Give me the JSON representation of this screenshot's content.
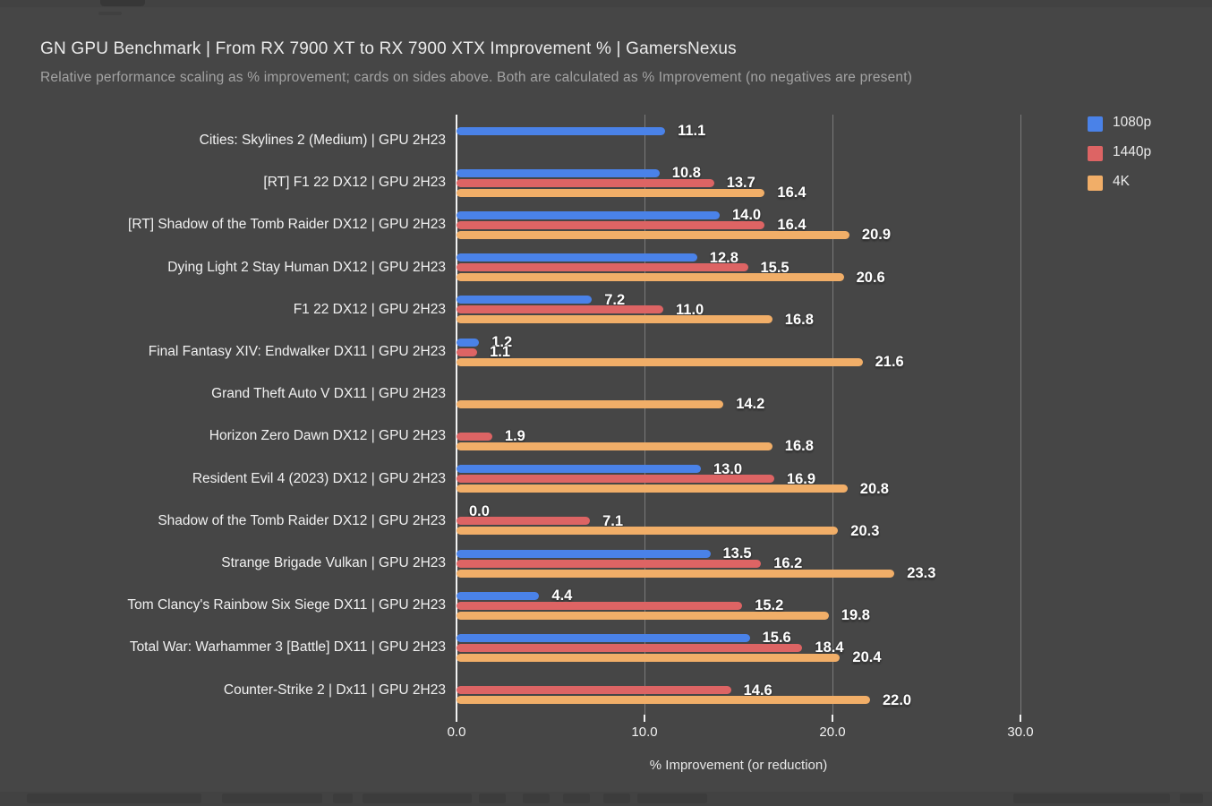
{
  "header": {
    "title": "GN GPU Benchmark | From RX 7900 XT to RX 7900 XTX Improvement % | GamersNexus",
    "subtitle": "Relative performance scaling as % improvement; cards on sides above. Both are calculated as % Improvement (no negatives are present)"
  },
  "colors": {
    "background": "#464646",
    "series_1080p": "#4a82e8",
    "series_1440p": "#dd6464",
    "series_4k": "#f1ae68",
    "gridline": "#7a7a7a",
    "axis": "#f2f2f2"
  },
  "chart_data": {
    "type": "bar",
    "orientation": "horizontal",
    "title": "GN GPU Benchmark | From RX 7900 XT to RX 7900 XTX Improvement % | GamersNexus",
    "subtitle": "Relative performance scaling as % improvement; cards on sides above. Both are calculated as % Improvement (no negatives are present)",
    "xlabel": "% Improvement (or reduction)",
    "xlim": [
      0,
      32
    ],
    "xticks": [
      0.0,
      10.0,
      20.0,
      30.0
    ],
    "grid": "vertical",
    "legend_position": "top-right",
    "value_label_decimals": 1,
    "categories": [
      "Cities: Skylines 2 (Medium) | GPU 2H23",
      "[RT] F1 22 DX12 | GPU 2H23",
      "[RT] Shadow of the Tomb Raider DX12 | GPU 2H23",
      "Dying Light 2 Stay Human DX12 | GPU 2H23",
      "F1 22 DX12 | GPU 2H23",
      "Final Fantasy XIV: Endwalker DX11 | GPU 2H23",
      "Grand Theft Auto V DX11 | GPU 2H23",
      "Horizon Zero Dawn DX12 | GPU 2H23",
      "Resident Evil 4 (2023) DX12 | GPU 2H23",
      "Shadow of the Tomb Raider DX12 | GPU 2H23",
      "Strange Brigade Vulkan | GPU 2H23",
      "Tom Clancy's Rainbow Six Siege DX11 | GPU 2H23",
      "Total War: Warhammer 3 [Battle] DX11 | GPU 2H23",
      "Counter-Strike 2 | Dx11 | GPU 2H23"
    ],
    "series": [
      {
        "name": "1080p",
        "color": "#4a82e8",
        "values": [
          11.1,
          10.8,
          14.0,
          12.8,
          7.2,
          1.2,
          null,
          null,
          13.0,
          0.0,
          13.5,
          4.4,
          15.6,
          null
        ]
      },
      {
        "name": "1440p",
        "color": "#dd6464",
        "values": [
          null,
          13.7,
          16.4,
          15.5,
          11.0,
          1.1,
          null,
          1.9,
          16.9,
          7.1,
          16.2,
          15.2,
          18.4,
          14.6
        ]
      },
      {
        "name": "4K",
        "color": "#f1ae68",
        "values": [
          null,
          16.4,
          20.9,
          20.6,
          16.8,
          21.6,
          14.2,
          16.8,
          20.8,
          20.3,
          23.3,
          19.8,
          20.4,
          22.0
        ]
      }
    ]
  }
}
